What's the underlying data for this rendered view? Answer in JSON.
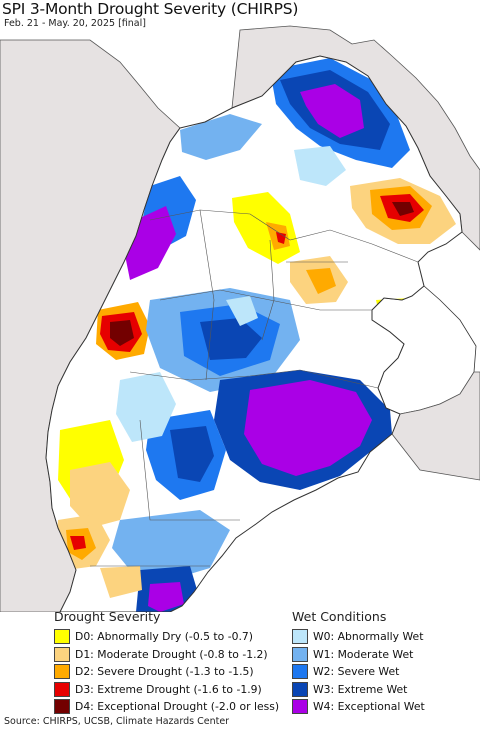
{
  "header": {
    "title": "SPI 3-Month Drought Severity (CHIRPS)",
    "subtitle": "Feb. 21 - May. 20, 2025 [final]"
  },
  "legend": {
    "drought": {
      "heading": "Drought Severity",
      "items": [
        {
          "label": "D0: Abnormally Dry (-0.5 to -0.7)",
          "color": "#ffff00"
        },
        {
          "label": "D1: Moderate Drought (-0.8 to -1.2)",
          "color": "#fcd37f"
        },
        {
          "label": "D2: Severe Drought (-1.3 to -1.5)",
          "color": "#ffaa00"
        },
        {
          "label": "D3: Extreme Drought (-1.6 to -1.9)",
          "color": "#e60000"
        },
        {
          "label": "D4: Exceptional Drought (-2.0 or less)",
          "color": "#730000"
        }
      ]
    },
    "wet": {
      "heading": "Wet Conditions",
      "items": [
        {
          "label": "W0: Abnormally Wet",
          "color": "#bde6fa"
        },
        {
          "label": "W1: Moderate Wet",
          "color": "#73b2f0"
        },
        {
          "label": "W2: Severe Wet",
          "color": "#1e78f0"
        },
        {
          "label": "W3: Extreme Wet",
          "color": "#0a46b4"
        },
        {
          "label": "W4: Exceptional Wet",
          "color": "#aa00e6"
        }
      ]
    }
  },
  "footer": {
    "source": "Source: CHIRPS, UCSB, Climate Hazards Center"
  },
  "colors": {
    "ocean": "#ffffff",
    "outside_land": "#e6e2e2",
    "border": "#333333"
  }
}
